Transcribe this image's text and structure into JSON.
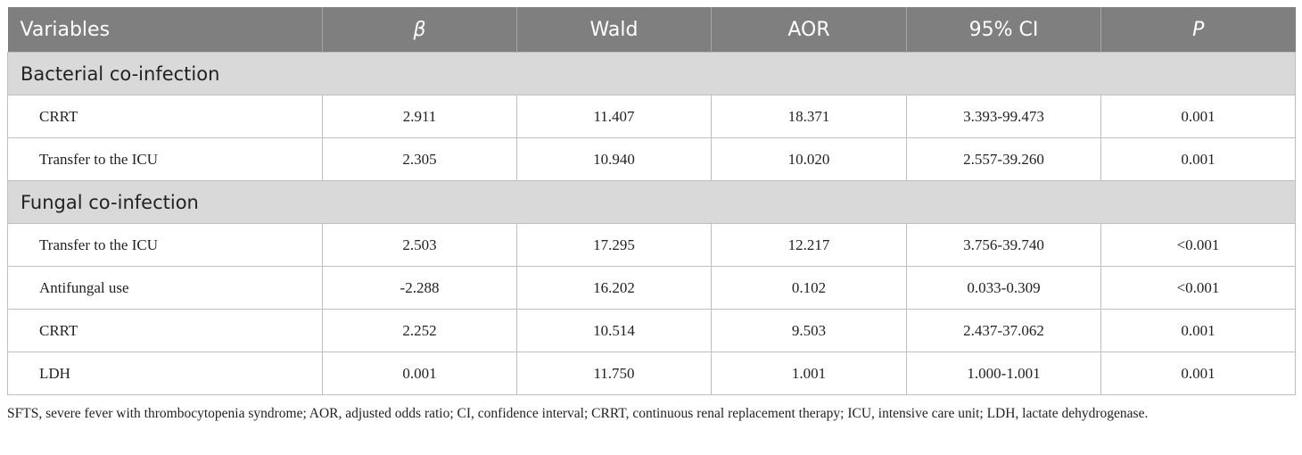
{
  "table": {
    "header": [
      "Variables",
      "β",
      "Wald",
      "AOR",
      "95% CI",
      "P"
    ],
    "sections": [
      {
        "title": "Bacterial co-infection",
        "rows": [
          [
            "CRRT",
            "2.911",
            "11.407",
            "18.371",
            "3.393-99.473",
            "0.001"
          ],
          [
            "Transfer to the ICU",
            "2.305",
            "10.940",
            "10.020",
            "2.557-39.260",
            "0.001"
          ]
        ]
      },
      {
        "title": "Fungal co-infection",
        "rows": [
          [
            "Transfer to the ICU",
            "2.503",
            "17.295",
            "12.217",
            "3.756-39.740",
            "<0.001"
          ],
          [
            "Antifungal use",
            "-2.288",
            "16.202",
            "0.102",
            "0.033-0.309",
            "<0.001"
          ],
          [
            "CRRT",
            "2.252",
            "10.514",
            "9.503",
            "2.437-37.062",
            "0.001"
          ],
          [
            "LDH",
            "0.001",
            "11.750",
            "1.001",
            "1.000-1.001",
            "0.001"
          ]
        ]
      }
    ]
  },
  "footnote": "SFTS, severe fever with thrombocytopenia syndrome; AOR, adjusted odds ratio; CI, confidence interval; CRRT, continuous renal replacement therapy; ICU, intensive care unit; LDH, lactate dehydrogenase."
}
